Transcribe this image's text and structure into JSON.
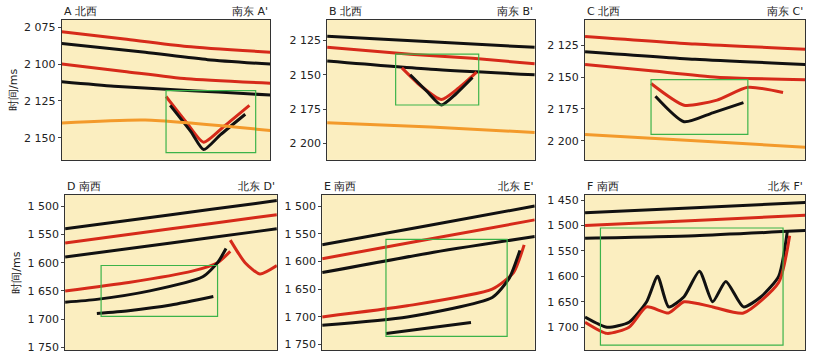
{
  "chart_data": [
    {
      "type": "line",
      "title": "A 北西",
      "subtitle": "南东 A'",
      "ylabel": "时间/ms",
      "xlim": [
        0,
        1
      ],
      "ylim": [
        2165,
        2070
      ],
      "tick_labels": "y",
      "yticks": [
        {
          "value": 2075,
          "label": "2 075"
        },
        {
          "value": 2100,
          "label": "2 100"
        },
        {
          "value": 2125,
          "label": "2 125"
        },
        {
          "value": 2150,
          "label": "2 150"
        }
      ],
      "box": {
        "x": [
          0.5,
          0.93
        ],
        "y": [
          2118,
          2160
        ],
        "color": "#3cb34a"
      },
      "series": [
        {
          "color": "#d62a1a",
          "x": [
            0,
            0.3,
            0.6,
            1
          ],
          "values": [
            2078,
            2083,
            2088,
            2092
          ]
        },
        {
          "color": "#111111",
          "x": [
            0,
            0.4,
            0.7,
            1
          ],
          "values": [
            2086,
            2092,
            2097,
            2100
          ]
        },
        {
          "color": "#d62a1a",
          "x": [
            0,
            0.3,
            0.6,
            1
          ],
          "values": [
            2100,
            2105,
            2110,
            2113
          ]
        },
        {
          "color": "#111111",
          "x": [
            0,
            0.25,
            0.5,
            0.75,
            1
          ],
          "values": [
            2112,
            2115,
            2117,
            2119,
            2121
          ]
        },
        {
          "color": "#d62a1a",
          "x": [
            0.5,
            0.6,
            0.68,
            0.78,
            0.9
          ],
          "values": [
            2122,
            2140,
            2153,
            2142,
            2128
          ]
        },
        {
          "color": "#111111",
          "x": [
            0.52,
            0.62,
            0.68,
            0.76,
            0.88
          ],
          "values": [
            2128,
            2146,
            2158,
            2148,
            2134
          ]
        },
        {
          "color": "#f39a2b",
          "x": [
            0,
            0.4,
            1
          ],
          "values": [
            2140,
            2138,
            2145
          ]
        }
      ]
    },
    {
      "type": "line",
      "title": "B 北西",
      "subtitle": "南东 B'",
      "xlim": [
        0,
        1
      ],
      "ylim": [
        2212,
        2110
      ],
      "tick_labels": "y",
      "yticks": [
        {
          "value": 2125,
          "label": "2 125"
        },
        {
          "value": 2150,
          "label": "2 150"
        },
        {
          "value": 2175,
          "label": "2 175"
        },
        {
          "value": 2200,
          "label": "2 200"
        }
      ],
      "box": {
        "x": [
          0.33,
          0.73
        ],
        "y": [
          2135,
          2172
        ],
        "color": "#3cb34a"
      },
      "series": [
        {
          "color": "#111111",
          "x": [
            0,
            0.5,
            1
          ],
          "values": [
            2122,
            2126,
            2130
          ]
        },
        {
          "color": "#d62a1a",
          "x": [
            0,
            0.4,
            0.7,
            1
          ],
          "values": [
            2130,
            2135,
            2138,
            2142
          ]
        },
        {
          "color": "#111111",
          "x": [
            0,
            0.5,
            1
          ],
          "values": [
            2140,
            2146,
            2150
          ]
        },
        {
          "color": "#d62a1a",
          "x": [
            0.36,
            0.45,
            0.55,
            0.63,
            0.72
          ],
          "values": [
            2145,
            2158,
            2168,
            2160,
            2148
          ]
        },
        {
          "color": "#111111",
          "x": [
            0.4,
            0.48,
            0.55,
            0.62,
            0.7
          ],
          "values": [
            2150,
            2162,
            2172,
            2164,
            2152
          ]
        },
        {
          "color": "#f39a2b",
          "x": [
            0,
            0.5,
            1
          ],
          "values": [
            2185,
            2188,
            2192
          ]
        }
      ]
    },
    {
      "type": "line",
      "title": "C 北西",
      "subtitle": "南东 C'",
      "xlim": [
        0,
        1
      ],
      "ylim": [
        2215,
        2105
      ],
      "tick_labels": "y",
      "yticks": [
        {
          "value": 2125,
          "label": "2 125"
        },
        {
          "value": 2150,
          "label": "2 150"
        },
        {
          "value": 2175,
          "label": "2 175"
        },
        {
          "value": 2200,
          "label": "2 200"
        }
      ],
      "box": {
        "x": [
          0.3,
          0.74
        ],
        "y": [
          2152,
          2195
        ],
        "color": "#3cb34a"
      },
      "series": [
        {
          "color": "#d62a1a",
          "x": [
            0,
            0.5,
            1
          ],
          "values": [
            2118,
            2124,
            2128
          ]
        },
        {
          "color": "#111111",
          "x": [
            0,
            0.5,
            1
          ],
          "values": [
            2130,
            2136,
            2140
          ]
        },
        {
          "color": "#d62a1a",
          "x": [
            0,
            0.3,
            0.6,
            1
          ],
          "values": [
            2140,
            2145,
            2150,
            2152
          ]
        },
        {
          "color": "#d62a1a",
          "x": [
            0.3,
            0.45,
            0.6,
            0.74,
            0.9
          ],
          "values": [
            2155,
            2172,
            2168,
            2158,
            2162
          ]
        },
        {
          "color": "#111111",
          "x": [
            0.32,
            0.45,
            0.58,
            0.72
          ],
          "values": [
            2165,
            2185,
            2178,
            2170
          ]
        },
        {
          "color": "#f39a2b",
          "x": [
            0,
            0.5,
            1
          ],
          "values": [
            2195,
            2200,
            2205
          ]
        }
      ]
    },
    {
      "type": "line",
      "title": "D 南西",
      "subtitle": "北东 D'",
      "ylabel": "时间/ms",
      "xlim": [
        0,
        1
      ],
      "ylim": [
        1755,
        1480
      ],
      "tick_labels": "y",
      "yticks": [
        {
          "value": 1500,
          "label": "1 500"
        },
        {
          "value": 1550,
          "label": "1 550"
        },
        {
          "value": 1600,
          "label": "1 600"
        },
        {
          "value": 1650,
          "label": "1 650"
        },
        {
          "value": 1700,
          "label": "1 700"
        },
        {
          "value": 1750,
          "label": "1 750"
        }
      ],
      "box": {
        "x": [
          0.17,
          0.72
        ],
        "y": [
          1605,
          1695
        ],
        "color": "#3cb34a"
      },
      "series": [
        {
          "color": "#111111",
          "x": [
            0,
            0.5,
            0.9,
            1
          ],
          "values": [
            1540,
            1515,
            1495,
            1490
          ]
        },
        {
          "color": "#d62a1a",
          "x": [
            0,
            0.5,
            0.9,
            1
          ],
          "values": [
            1565,
            1540,
            1520,
            1515
          ]
        },
        {
          "color": "#111111",
          "x": [
            0,
            0.5,
            0.9,
            1
          ],
          "values": [
            1590,
            1565,
            1545,
            1540
          ]
        },
        {
          "color": "#d62a1a",
          "x": [
            0,
            0.3,
            0.6,
            0.72,
            0.78
          ],
          "values": [
            1650,
            1635,
            1615,
            1600,
            1580
          ]
        },
        {
          "color": "#111111",
          "x": [
            0,
            0.15,
            0.4,
            0.65,
            0.72,
            0.76
          ],
          "values": [
            1670,
            1665,
            1650,
            1625,
            1600,
            1575
          ]
        },
        {
          "color": "#111111",
          "x": [
            0.15,
            0.3,
            0.5,
            0.7
          ],
          "values": [
            1690,
            1685,
            1675,
            1660
          ]
        },
        {
          "color": "#d62a1a",
          "x": [
            0.78,
            0.85,
            0.92,
            1
          ],
          "values": [
            1560,
            1600,
            1620,
            1605
          ]
        }
      ]
    },
    {
      "type": "line",
      "title": "E 南西",
      "subtitle": "北东 E'",
      "xlim": [
        0,
        1
      ],
      "ylim": [
        1760,
        1480
      ],
      "tick_labels": "y",
      "yticks": [
        {
          "value": 1500,
          "label": "1 500"
        },
        {
          "value": 1550,
          "label": "1 550"
        },
        {
          "value": 1600,
          "label": "1 600"
        },
        {
          "value": 1650,
          "label": "1 650"
        },
        {
          "value": 1700,
          "label": "1 700"
        },
        {
          "value": 1750,
          "label": "1 750"
        }
      ],
      "box": {
        "x": [
          0.3,
          0.87
        ],
        "y": [
          1560,
          1735
        ],
        "color": "#3cb34a"
      },
      "series": [
        {
          "color": "#111111",
          "x": [
            0,
            0.5,
            1
          ],
          "values": [
            1570,
            1535,
            1500
          ]
        },
        {
          "color": "#d62a1a",
          "x": [
            0,
            0.5,
            1
          ],
          "values": [
            1595,
            1560,
            1525
          ]
        },
        {
          "color": "#111111",
          "x": [
            0,
            0.5,
            1
          ],
          "values": [
            1620,
            1585,
            1555
          ]
        },
        {
          "color": "#d62a1a",
          "x": [
            0,
            0.4,
            0.8,
            0.9,
            0.95
          ],
          "values": [
            1700,
            1680,
            1650,
            1620,
            1570
          ]
        },
        {
          "color": "#111111",
          "x": [
            0,
            0.4,
            0.8,
            0.88,
            0.93
          ],
          "values": [
            1715,
            1700,
            1665,
            1630,
            1580
          ]
        },
        {
          "color": "#111111",
          "x": [
            0.3,
            0.5,
            0.7
          ],
          "values": [
            1730,
            1720,
            1710
          ]
        }
      ]
    },
    {
      "type": "line",
      "title": "F 南西",
      "subtitle": "北东 F'",
      "xlim": [
        0,
        1
      ],
      "ylim": [
        1745,
        1440
      ],
      "tick_labels": "y",
      "yticks": [
        {
          "value": 1450,
          "label": "1 450"
        },
        {
          "value": 1500,
          "label": "1 500"
        },
        {
          "value": 1550,
          "label": "1 550"
        },
        {
          "value": 1600,
          "label": "1 600"
        },
        {
          "value": 1650,
          "label": "1 650"
        },
        {
          "value": 1700,
          "label": "1 700"
        }
      ],
      "box": {
        "x": [
          0.07,
          0.9
        ],
        "y": [
          1505,
          1735
        ],
        "color": "#3cb34a"
      },
      "series": [
        {
          "color": "#111111",
          "x": [
            0,
            0.5,
            1
          ],
          "values": [
            1475,
            1465,
            1455
          ]
        },
        {
          "color": "#d62a1a",
          "x": [
            0,
            0.5,
            1
          ],
          "values": [
            1500,
            1490,
            1480
          ]
        },
        {
          "color": "#111111",
          "x": [
            0,
            0.5,
            1
          ],
          "values": [
            1525,
            1520,
            1510
          ]
        },
        {
          "color": "#111111",
          "x": [
            0,
            0.1,
            0.2,
            0.28,
            0.33,
            0.38,
            0.45,
            0.52,
            0.58,
            0.64,
            0.72,
            0.8,
            0.88,
            0.92
          ],
          "values": [
            1680,
            1700,
            1690,
            1650,
            1600,
            1660,
            1640,
            1590,
            1650,
            1610,
            1660,
            1640,
            1600,
            1510
          ]
        },
        {
          "color": "#d62a1a",
          "x": [
            0,
            0.1,
            0.2,
            0.28,
            0.38,
            0.45,
            0.58,
            0.72,
            0.88,
            0.93
          ],
          "values": [
            1690,
            1712,
            1700,
            1660,
            1672,
            1650,
            1660,
            1672,
            1612,
            1520
          ]
        }
      ]
    }
  ]
}
